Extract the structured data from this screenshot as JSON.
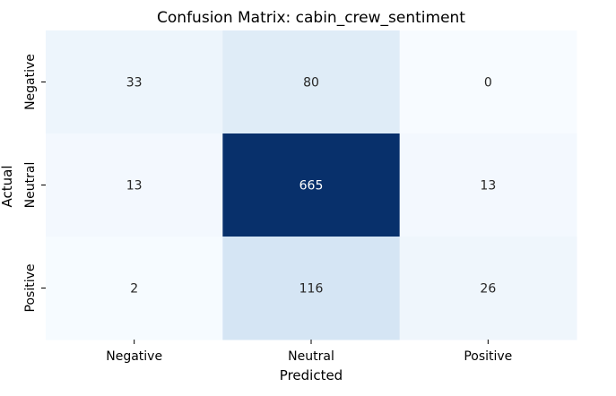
{
  "chart_data": {
    "type": "heatmap",
    "title": "Confusion Matrix: cabin_crew_sentiment",
    "xlabel": "Predicted",
    "ylabel": "Actual",
    "x_categories": [
      "Negative",
      "Neutral",
      "Positive"
    ],
    "y_categories": [
      "Negative",
      "Neutral",
      "Positive"
    ],
    "matrix": [
      [
        33,
        80,
        0
      ],
      [
        13,
        665,
        13
      ],
      [
        2,
        116,
        26
      ]
    ],
    "colormap": "Blues",
    "colorbar": false,
    "annotated": true,
    "colors": {
      "low": "#f7fbff",
      "high": "#08306b",
      "text_dark": "#262626",
      "text_light": "#ffffff"
    }
  }
}
